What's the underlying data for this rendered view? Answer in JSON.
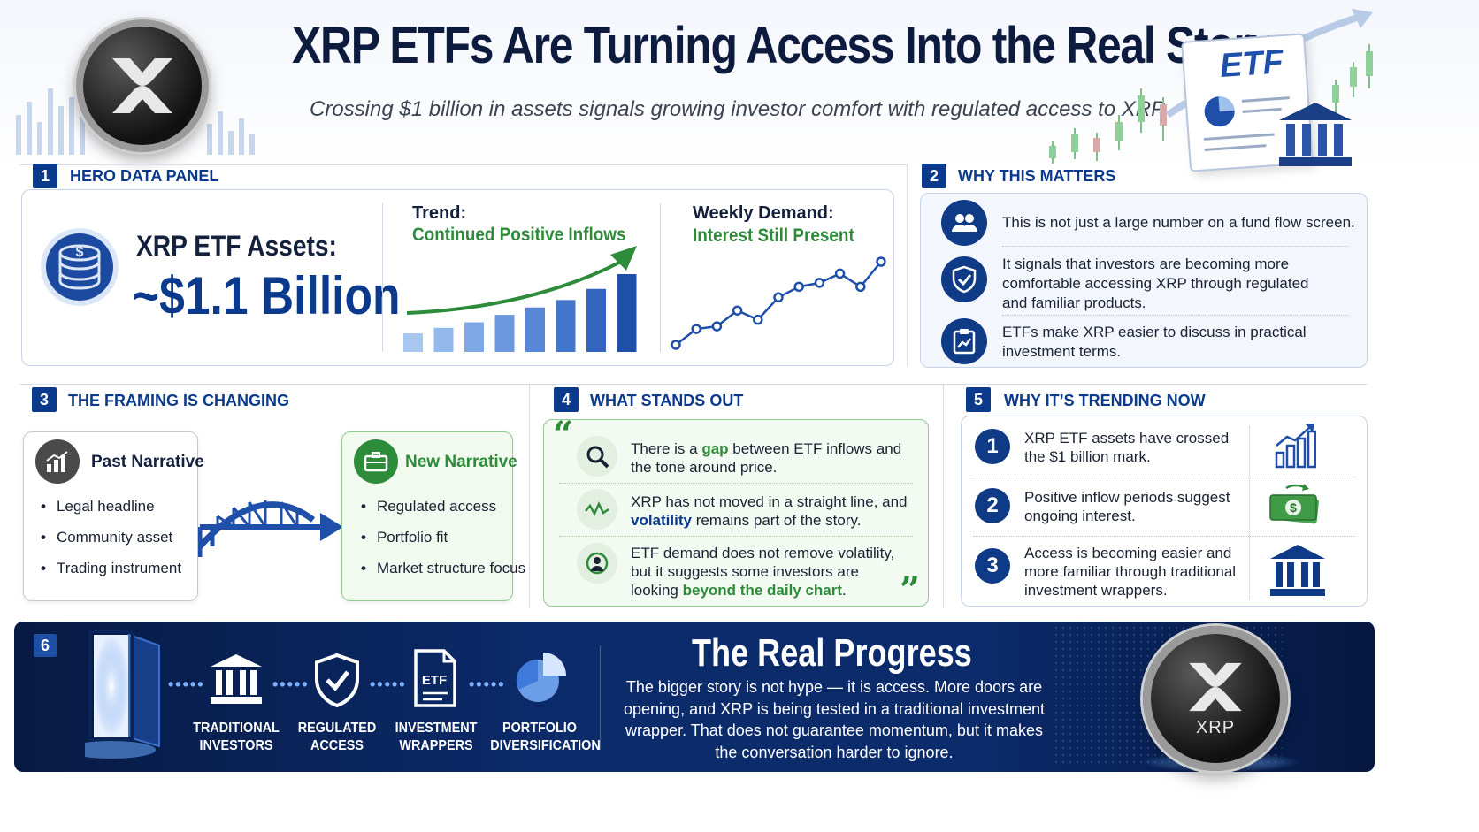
{
  "header": {
    "title": "XRP ETFs Are Turning Access Into the Real Story",
    "subtitle": "Crossing $1 billion in assets signals growing investor comfort with regulated access to XRP",
    "etf_document_label": "ETF"
  },
  "sections": {
    "hero": {
      "number": "1",
      "title": "HERO DATA PANEL"
    },
    "why": {
      "number": "2",
      "title": "WHY THIS MATTERS"
    },
    "framing": {
      "number": "3",
      "title": "THE FRAMING IS CHANGING"
    },
    "stand": {
      "number": "4",
      "title": "WHAT STANDS OUT"
    },
    "trending": {
      "number": "5",
      "title": "WHY IT’S TRENDING NOW"
    },
    "progress": {
      "number": "6"
    }
  },
  "hero": {
    "assets_label": "XRP ETF Assets:",
    "assets_value": "~$1.1 Billion",
    "trend_label": "Trend:",
    "trend_value": "Continued Positive Inflows",
    "weekly_label": "Weekly Demand:",
    "weekly_value": "Interest Still Present"
  },
  "chart_data": [
    {
      "type": "bar",
      "title": "Trend:",
      "subtitle": "Continued Positive Inflows",
      "values": [
        1,
        1.3,
        1.6,
        2.0,
        2.4,
        2.8,
        3.4,
        4.2
      ],
      "color": "#2c64c2"
    },
    {
      "type": "line",
      "title": "Weekly Demand:",
      "subtitle": "Interest Still Present",
      "values": [
        1.0,
        2.2,
        2.4,
        3.6,
        2.9,
        4.6,
        5.4,
        5.7,
        6.4,
        5.4,
        7.3
      ],
      "color": "#1f4fa8"
    }
  ],
  "why": {
    "items": [
      {
        "icon": "people-icon",
        "text": "This is not just a large number on a fund flow screen."
      },
      {
        "icon": "shield-check-icon",
        "text": "It signals that investors are becoming more comfortable accessing XRP through regulated and familiar products."
      },
      {
        "icon": "clipboard-chart-icon",
        "text": "ETFs make XRP easier to discuss in practical investment terms."
      }
    ]
  },
  "framing": {
    "past": {
      "title": "Past Narrative",
      "items": [
        "Legal headline",
        "Community asset",
        "Trading instrument"
      ]
    },
    "new": {
      "title": "New Narrative",
      "items": [
        "Regulated access",
        "Portfolio fit",
        "Market structure focus"
      ]
    }
  },
  "stand": {
    "items": [
      {
        "icon": "magnifier-icon",
        "pre": "There is a ",
        "hl": "gap",
        "post": " between ETF inflows and the tone around price."
      },
      {
        "icon": "wave-icon",
        "pre": "XRP has not moved in a straight line, and ",
        "hl": "volatility",
        "post": " remains part of the story."
      },
      {
        "icon": "investor-icon",
        "pre": "ETF demand does not remove volatility, but it suggests some investors are looking ",
        "hl": "beyond the daily chart",
        "post": "."
      }
    ]
  },
  "trending": {
    "items": [
      {
        "num": "1",
        "text": "XRP ETF assets have crossed the $1 billion mark.",
        "icon": "bar-chart-icon"
      },
      {
        "num": "2",
        "text": "Positive inflow periods suggest ongoing interest.",
        "icon": "cash-icon"
      },
      {
        "num": "3",
        "text": "Access is becoming easier and more familiar through traditional investment wrappers.",
        "icon": "bank-icon"
      }
    ]
  },
  "progress": {
    "steps": [
      {
        "label": "TRADITIONAL INVESTORS",
        "icon": "bank-icon"
      },
      {
        "label": "REGULATED ACCESS",
        "icon": "shield-check-icon"
      },
      {
        "label": "INVESTMENT WRAPPERS",
        "icon": "document-icon",
        "doc_label": "ETF"
      },
      {
        "label": "PORTFOLIO DIVERSIFICATION",
        "icon": "pie-chart-icon"
      }
    ],
    "title": "The Real Progress",
    "text": "The bigger story is not hype — it is access. More doors are opening, and XRP is being tested in a traditional investment wrapper. That does not guarantee momentum, but it makes the conversation harder to ignore.",
    "coin_label": "XRP"
  },
  "colors": {
    "navy": "#0b3a8c",
    "green": "#2e8b3a",
    "banner": "#0c2b6b"
  }
}
